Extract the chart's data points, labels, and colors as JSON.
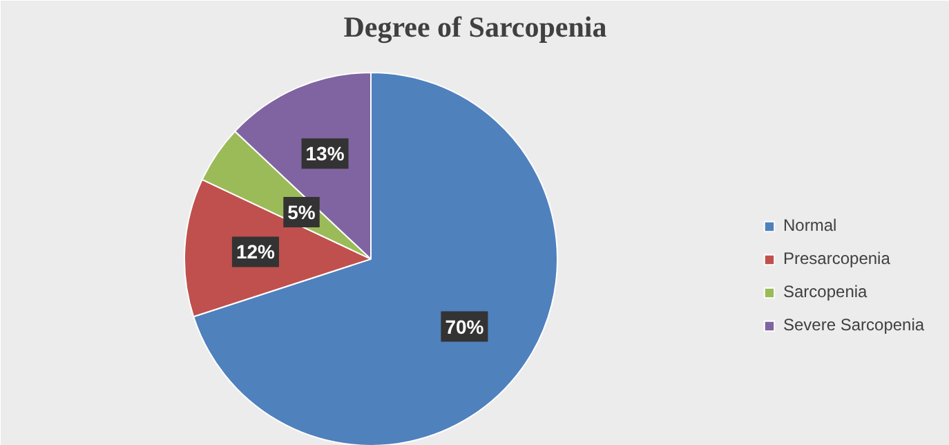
{
  "chart_data": {
    "type": "pie",
    "title": "Degree of Sarcopenia",
    "categories": [
      "Normal",
      "Presarcopenia",
      "Sarcopenia",
      "Severe Sarcopenia"
    ],
    "values": [
      70,
      12,
      5,
      13
    ],
    "colors": [
      "#4f81bd",
      "#c0504d",
      "#9bbb59",
      "#8064a2"
    ],
    "value_labels": [
      "70%",
      "12%",
      "5%",
      "13%"
    ],
    "legend": "right"
  }
}
